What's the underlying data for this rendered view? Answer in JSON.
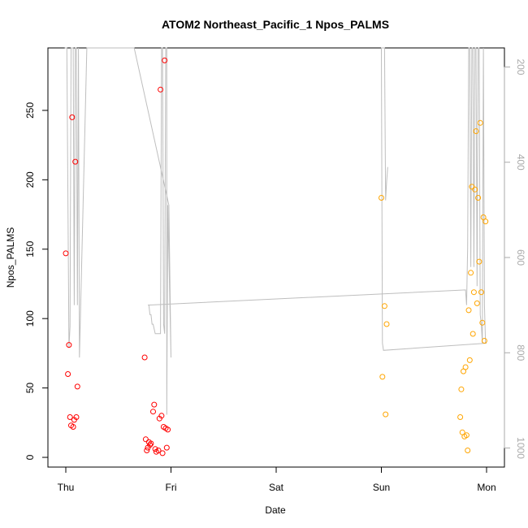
{
  "chart_data": {
    "type": "scatter",
    "title": "ATOM2 Northeast_Pacific_1 Npos_PALMS",
    "xlabel": "Date",
    "ylabel": "Npos_PALMS",
    "x_ticks": [
      "Thu",
      "Fri",
      "Sat",
      "Sun",
      "Mon"
    ],
    "x_range_days": [
      -0.17,
      4.17
    ],
    "y_ticks": [
      0,
      50,
      100,
      150,
      200,
      250
    ],
    "y_range": [
      -7,
      295
    ],
    "y2_ticks": [
      200,
      400,
      600,
      800,
      1000
    ],
    "y2_range": [
      1040,
      160
    ],
    "y2_axis_color": "#aaaaaa",
    "line_color": "#bebebe",
    "series": [
      {
        "color": "#ff0000",
        "points": [
          [
            0.0,
            147
          ],
          [
            0.02,
            60
          ],
          [
            0.03,
            81
          ],
          [
            0.04,
            29
          ],
          [
            0.05,
            23
          ],
          [
            0.06,
            245
          ],
          [
            0.07,
            22
          ],
          [
            0.08,
            27
          ],
          [
            0.09,
            213
          ],
          [
            0.1,
            29
          ],
          [
            0.11,
            51
          ],
          [
            0.75,
            72
          ],
          [
            0.76,
            13
          ],
          [
            0.77,
            5
          ],
          [
            0.78,
            7
          ],
          [
            0.79,
            11
          ],
          [
            0.8,
            9
          ],
          [
            0.81,
            10
          ],
          [
            0.83,
            33
          ],
          [
            0.84,
            38
          ],
          [
            0.85,
            6
          ],
          [
            0.86,
            4
          ],
          [
            0.88,
            5
          ],
          [
            0.89,
            28
          ],
          [
            0.9,
            265
          ],
          [
            0.91,
            30
          ],
          [
            0.92,
            3
          ],
          [
            0.93,
            22
          ],
          [
            0.94,
            286
          ],
          [
            0.95,
            21
          ],
          [
            0.96,
            7
          ],
          [
            0.97,
            20
          ]
        ]
      },
      {
        "color": "#ffa500",
        "points": [
          [
            3.0,
            187
          ],
          [
            3.01,
            58
          ],
          [
            3.03,
            109
          ],
          [
            3.04,
            31
          ],
          [
            3.05,
            96
          ],
          [
            3.75,
            29
          ],
          [
            3.76,
            49
          ],
          [
            3.77,
            18
          ],
          [
            3.78,
            62
          ],
          [
            3.79,
            15
          ],
          [
            3.8,
            65
          ],
          [
            3.81,
            16
          ],
          [
            3.82,
            5
          ],
          [
            3.83,
            106
          ],
          [
            3.84,
            70
          ],
          [
            3.85,
            133
          ],
          [
            3.86,
            195
          ],
          [
            3.87,
            89
          ],
          [
            3.88,
            119
          ],
          [
            3.89,
            193
          ],
          [
            3.9,
            235
          ],
          [
            3.91,
            111
          ],
          [
            3.92,
            187
          ],
          [
            3.93,
            141
          ],
          [
            3.94,
            241
          ],
          [
            3.95,
            119
          ],
          [
            3.96,
            97
          ],
          [
            3.97,
            173
          ],
          [
            3.98,
            84
          ],
          [
            3.99,
            170
          ]
        ]
      }
    ],
    "depth_line": [
      [
        -0.01,
        70
      ],
      [
        0.0,
        0
      ],
      [
        0.01,
        80
      ],
      [
        0.03,
        790
      ],
      [
        0.04,
        745
      ],
      [
        0.05,
        0
      ],
      [
        0.07,
        0
      ],
      [
        0.08,
        700
      ],
      [
        0.09,
        0
      ],
      [
        0.1,
        0
      ],
      [
        0.11,
        700
      ],
      [
        0.12,
        0
      ],
      [
        0.13,
        810
      ],
      [
        0.2,
        0
      ],
      [
        0.65,
        0
      ],
      [
        0.98,
        490
      ],
      [
        1.0,
        810
      ],
      [
        0.97,
        490
      ],
      [
        0.96,
        930
      ],
      [
        0.96,
        0
      ],
      [
        0.95,
        0
      ],
      [
        0.94,
        760
      ],
      [
        0.93,
        740
      ],
      [
        0.92,
        0
      ],
      [
        0.91,
        0
      ],
      [
        0.9,
        760
      ],
      [
        0.85,
        760
      ],
      [
        0.84,
        750
      ],
      [
        0.83,
        740
      ],
      [
        0.82,
        740
      ],
      [
        0.81,
        720
      ],
      [
        0.8,
        720
      ],
      [
        0.79,
        700
      ],
      [
        0.78,
        700
      ],
      [
        3.8,
        668
      ],
      [
        3.81,
        700
      ],
      [
        3.82,
        580
      ],
      [
        3.83,
        0
      ],
      [
        3.84,
        0
      ],
      [
        3.85,
        620
      ],
      [
        3.86,
        0
      ],
      [
        3.87,
        0
      ],
      [
        3.88,
        620
      ],
      [
        3.89,
        0
      ],
      [
        3.9,
        0
      ],
      [
        3.91,
        660
      ],
      [
        3.92,
        0
      ],
      [
        3.93,
        0
      ],
      [
        3.94,
        720
      ],
      [
        3.95,
        740
      ],
      [
        3.96,
        780
      ],
      [
        3.97,
        0
      ],
      [
        3.98,
        700
      ],
      [
        3.99,
        780
      ],
      [
        4.0,
        780
      ],
      [
        3.02,
        795
      ],
      [
        3.01,
        780
      ],
      [
        3.0,
        0
      ],
      [
        3.03,
        0
      ],
      [
        3.04,
        480
      ],
      [
        3.05,
        440
      ],
      [
        3.06,
        410
      ]
    ]
  }
}
